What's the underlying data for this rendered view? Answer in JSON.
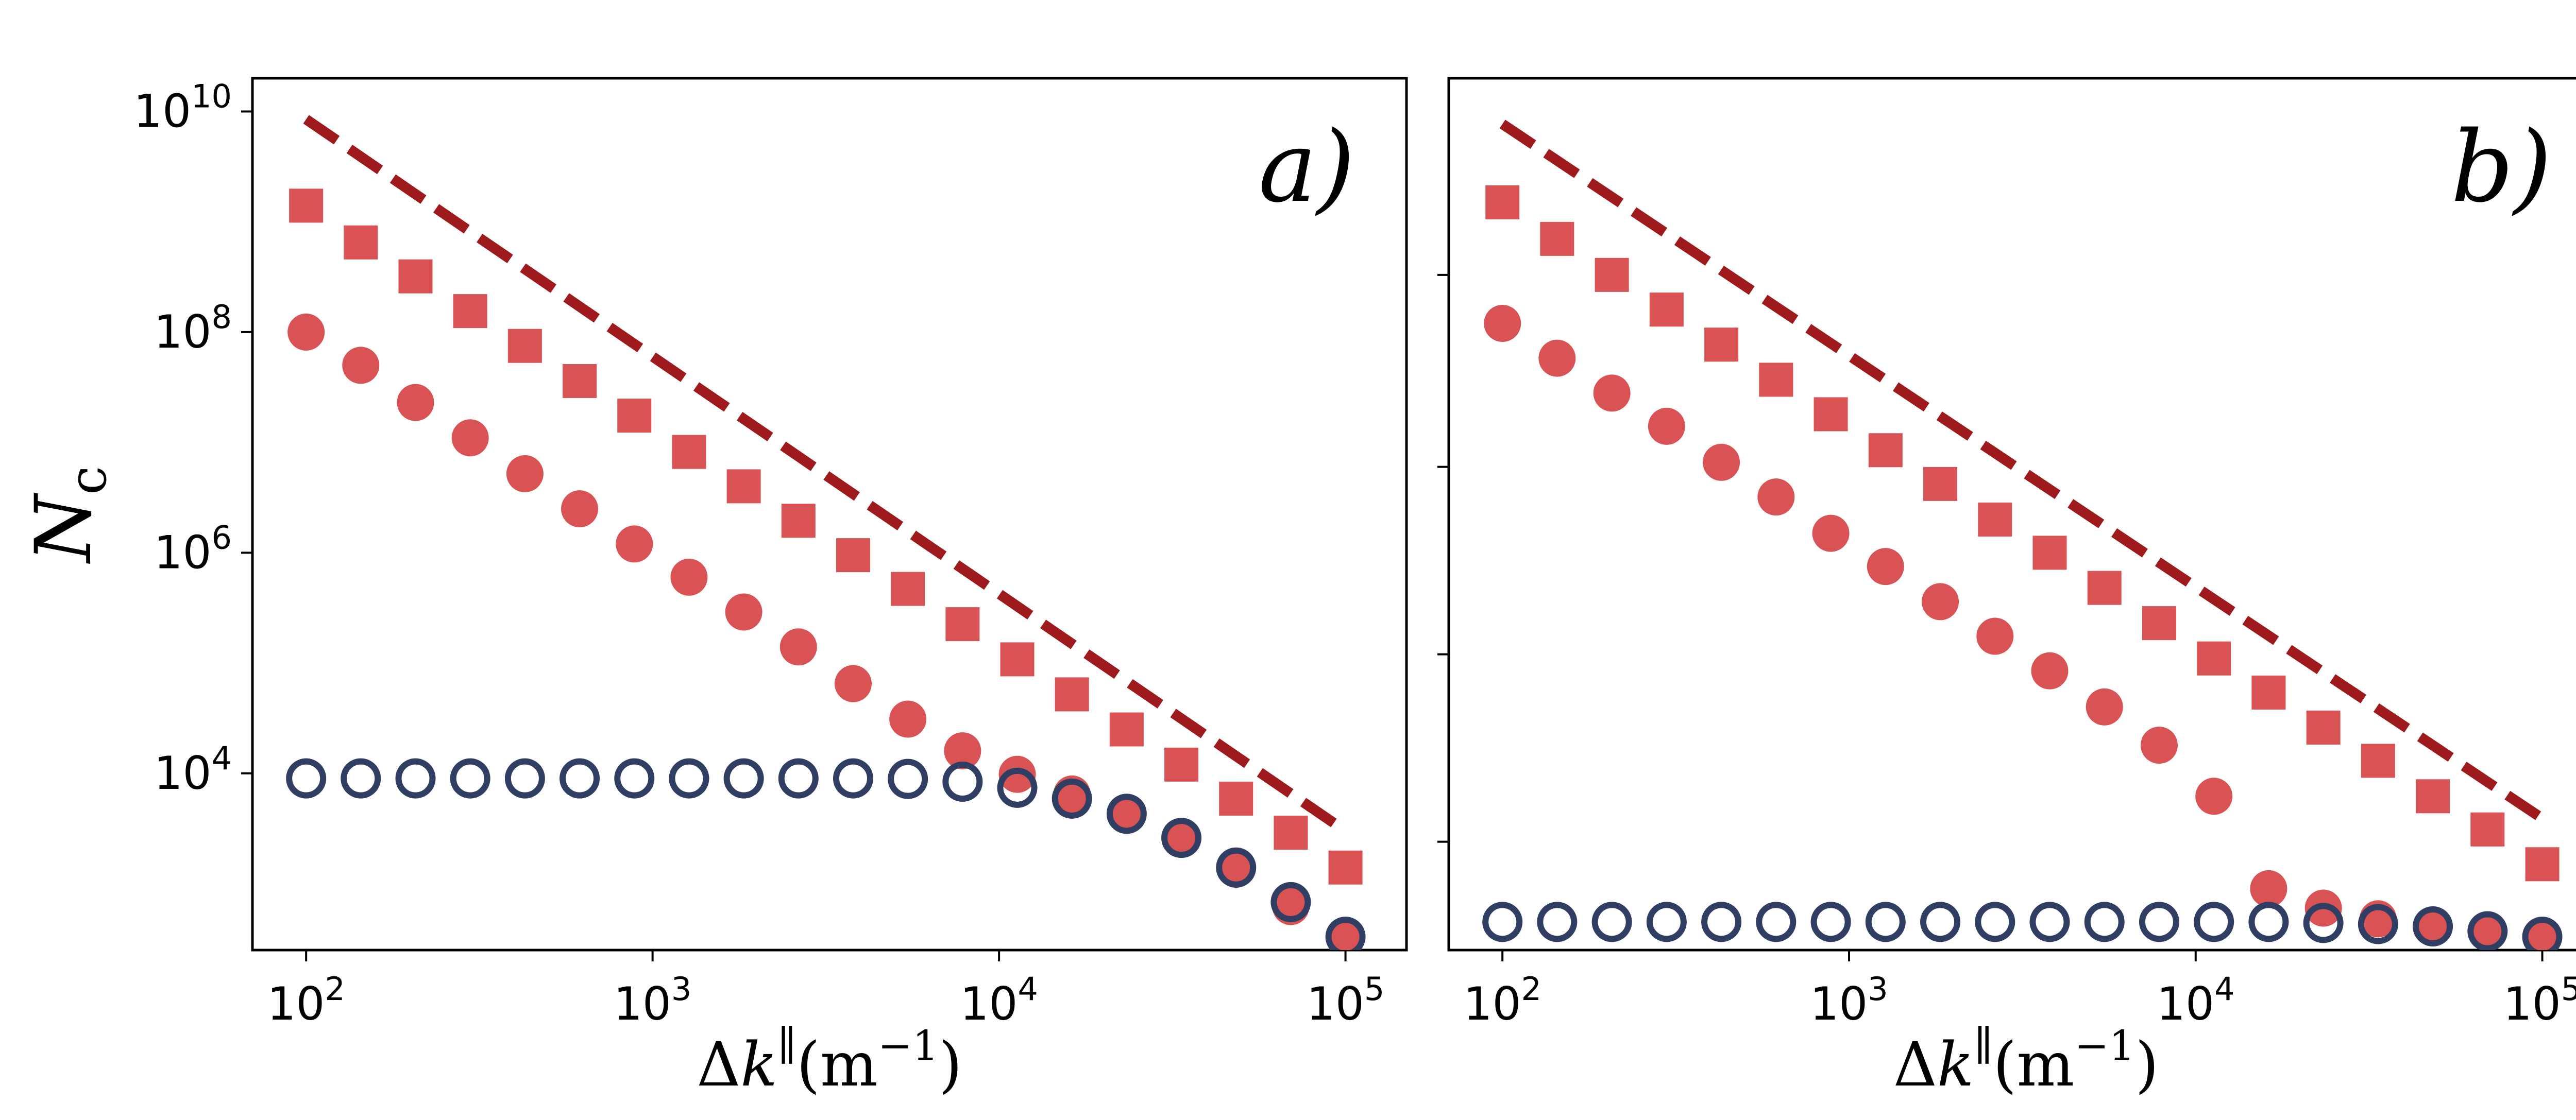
{
  "chart_data": [
    {
      "type": "scatter",
      "panel_label": "a)",
      "xscale": "log",
      "yscale": "log",
      "xlim": [
        70,
        150000
      ],
      "ylim": [
        250,
        20000000000
      ],
      "xticks": [
        {
          "value": 100,
          "base": "10",
          "exp": "2"
        },
        {
          "value": 1000,
          "base": "10",
          "exp": "3"
        },
        {
          "value": 10000,
          "base": "10",
          "exp": "4"
        },
        {
          "value": 100000,
          "base": "10",
          "exp": "5"
        }
      ],
      "yticks": [
        {
          "value": 10000,
          "base": "10",
          "exp": "4"
        },
        {
          "value": 1000000,
          "base": "10",
          "exp": "6"
        },
        {
          "value": 100000000,
          "base": "10",
          "exp": "8"
        },
        {
          "value": 10000000000,
          "base": "10",
          "exp": "10"
        }
      ],
      "ylabel": {
        "main": "N",
        "sub": "c"
      },
      "xlabel": {
        "delta": "Δ",
        "k": "k",
        "sup": "∥",
        "unit": "(m",
        "unit_exp": "−1",
        "close": ")"
      },
      "x": [
        100,
        143.8,
        206.9,
        297.6,
        428.1,
        615.8,
        885.9,
        1274.3,
        1833.0,
        2636.7,
        3792.7,
        5455.6,
        7847.6,
        11288.4,
        16237.8,
        23357.2,
        33598.2,
        48329.3,
        69519.3,
        100000
      ],
      "series": [
        {
          "name": "reference line",
          "marker": "dashed-line",
          "color": "#9e1a1c",
          "x": [
            100,
            100000
          ],
          "values": [
            8500000000,
            3000
          ]
        },
        {
          "name": "squares",
          "marker": "square",
          "color": "#d95355",
          "values": [
            1400000000,
            650000000,
            320000000,
            155000000,
            75000000,
            36000000,
            17500000,
            8200000,
            4000000,
            1950000,
            950000,
            470000,
            225000,
            108000,
            52000,
            25000,
            12000,
            5900,
            2900,
            1400
          ]
        },
        {
          "name": "circles",
          "marker": "circle",
          "color": "#d95355",
          "values": [
            100000000,
            50000000,
            23000000,
            11000000,
            5200000,
            2500000,
            1200000,
            600000,
            290000,
            140000,
            65000,
            31000,
            16000,
            9800,
            6500,
            4400,
            2600,
            1350,
            620,
            310
          ]
        },
        {
          "name": "open circles",
          "marker": "open-circle",
          "color": "#2f3e62",
          "values": [
            9000,
            9000,
            9000,
            9000,
            9000,
            9000,
            9000,
            9000,
            9000,
            9000,
            9000,
            8900,
            8400,
            7400,
            5900,
            4300,
            2600,
            1400,
            680,
            330
          ]
        }
      ]
    },
    {
      "type": "scatter",
      "panel_label": "b)",
      "xscale": "log",
      "yscale": "log",
      "xlim": [
        70,
        150000
      ],
      "ylim": [
        250,
        20000000000
      ],
      "xticks": [
        {
          "value": 100,
          "base": "10",
          "exp": "2"
        },
        {
          "value": 1000,
          "base": "10",
          "exp": "3"
        },
        {
          "value": 10000,
          "base": "10",
          "exp": "4"
        },
        {
          "value": 100000,
          "base": "10",
          "exp": "5"
        }
      ],
      "yticks_unlabeled": [
        2400,
        120000,
        6000000,
        330000000
      ],
      "xlabel": {
        "delta": "Δ",
        "k": "k",
        "sup": "∥",
        "unit": "(m",
        "unit_exp": "−1",
        "close": ")"
      },
      "x": [
        100,
        143.8,
        206.9,
        297.6,
        428.1,
        615.8,
        885.9,
        1274.3,
        1833.0,
        2636.7,
        3792.7,
        5455.6,
        7847.6,
        11288.4,
        16237.8,
        23357.2,
        33598.2,
        48329.3,
        69519.3,
        100000
      ],
      "series": [
        {
          "name": "reference line",
          "marker": "dashed-line",
          "color": "#9e1a1c",
          "x": [
            100,
            100000
          ],
          "values": [
            7700000000,
            3900
          ]
        },
        {
          "name": "squares",
          "marker": "square",
          "color": "#d95355",
          "values": [
            1500000000,
            700000000,
            330000000,
            160000000,
            77000000,
            37000000,
            18000000,
            8500000,
            4200000,
            2000000,
            1000000,
            480000,
            230000,
            110000,
            54000,
            26000,
            13000,
            6200,
            3100,
            1500
          ]
        },
        {
          "name": "circles",
          "marker": "circle",
          "color": "#d95355",
          "values": [
            120000000,
            58000000,
            28000000,
            14000000,
            6600000,
            3200000,
            1500000,
            750000,
            360000,
            175000,
            85000,
            40000,
            18000,
            6200,
            900,
            600,
            480,
            420,
            370,
            330
          ]
        },
        {
          "name": "open circles",
          "marker": "open-circle",
          "color": "#2f3e62",
          "values": [
            450,
            450,
            450,
            450,
            450,
            450,
            450,
            450,
            450,
            450,
            450,
            450,
            450,
            450,
            450,
            440,
            430,
            410,
            370,
            330
          ]
        }
      ]
    }
  ]
}
